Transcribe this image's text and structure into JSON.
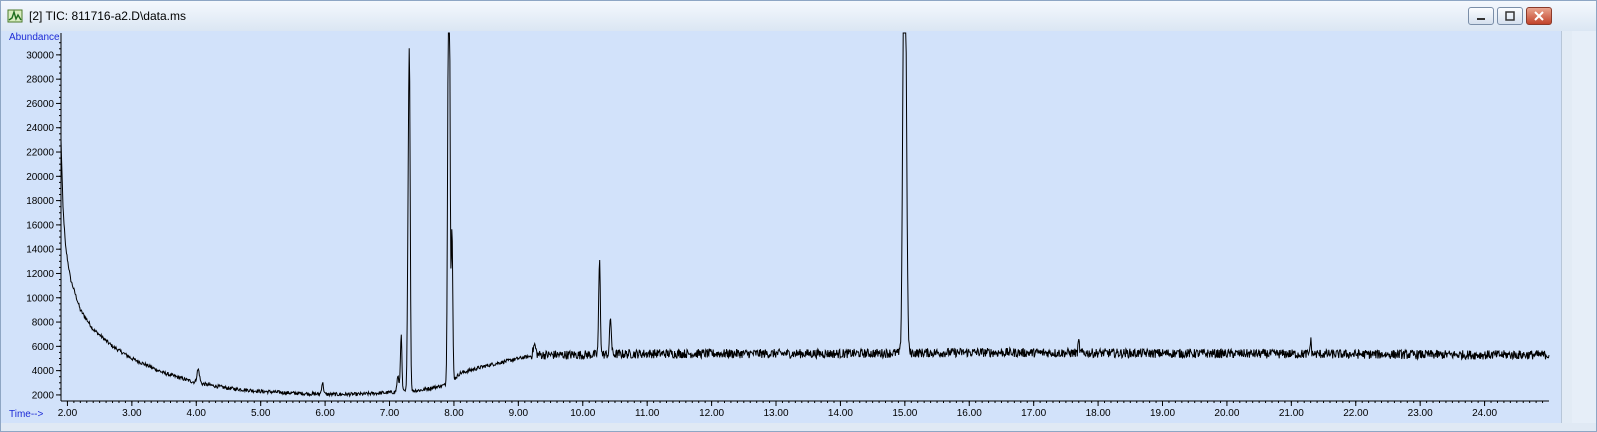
{
  "window": {
    "title": "[2] TIC: 811716-a2.D\\data.ms",
    "icon": "chromatogram-app-icon",
    "buttons": [
      "minimize-icon",
      "restore-icon",
      "close-icon"
    ]
  },
  "colors": {
    "plot_background": "#d2e2fa",
    "axis_label": "#1c2ad6",
    "trace": "#000000",
    "close_button": "#c2432a"
  },
  "chart_data": {
    "type": "line",
    "ylabel": "Abundance",
    "xlabel": "Time-->",
    "xlim": [
      1.9,
      25.0
    ],
    "ylim": [
      1500,
      31800
    ],
    "x_ticks": [
      "2.00",
      "3.00",
      "4.00",
      "5.00",
      "6.00",
      "7.00",
      "8.00",
      "9.00",
      "10.00",
      "11.00",
      "12.00",
      "13.00",
      "14.00",
      "15.00",
      "16.00",
      "17.00",
      "18.00",
      "19.00",
      "20.00",
      "21.00",
      "22.00",
      "23.00",
      "24.00"
    ],
    "y_ticks": [
      "2000",
      "4000",
      "6000",
      "8000",
      "10000",
      "12000",
      "14000",
      "16000",
      "18000",
      "20000",
      "22000",
      "24000",
      "26000",
      "28000",
      "30000"
    ],
    "baseline": [
      [
        1.9,
        23000
      ],
      [
        1.93,
        17500
      ],
      [
        1.97,
        14200
      ],
      [
        2.05,
        11500
      ],
      [
        2.2,
        9000
      ],
      [
        2.4,
        7400
      ],
      [
        2.7,
        6000
      ],
      [
        3.0,
        5000
      ],
      [
        3.5,
        3800
      ],
      [
        4.0,
        3000
      ],
      [
        4.5,
        2550
      ],
      [
        5.0,
        2300
      ],
      [
        5.5,
        2150
      ],
      [
        6.0,
        2050
      ],
      [
        6.5,
        2050
      ],
      [
        7.0,
        2200
      ],
      [
        7.5,
        2400
      ],
      [
        7.85,
        2800
      ],
      [
        8.0,
        3300
      ],
      [
        8.1,
        3800
      ],
      [
        8.5,
        4400
      ],
      [
        9.0,
        5000
      ],
      [
        9.3,
        5300
      ],
      [
        10.0,
        5300
      ],
      [
        11.0,
        5400
      ],
      [
        12.0,
        5400
      ],
      [
        14.0,
        5400
      ],
      [
        16.0,
        5500
      ],
      [
        20.0,
        5400
      ],
      [
        24.0,
        5300
      ],
      [
        25.0,
        5300
      ]
    ],
    "peaks": [
      {
        "x": 4.03,
        "y": 4100,
        "width": 0.02
      },
      {
        "x": 5.96,
        "y": 3000,
        "width": 0.015
      },
      {
        "x": 7.13,
        "y": 3500,
        "width": 0.015
      },
      {
        "x": 7.18,
        "y": 6900,
        "width": 0.012
      },
      {
        "x": 7.29,
        "y": 14800,
        "width": 0.012
      },
      {
        "x": 7.31,
        "y": 26800,
        "width": 0.012
      },
      {
        "x": 7.91,
        "y": 25000,
        "width": 0.012
      },
      {
        "x": 7.93,
        "y": 31800,
        "width": 0.012
      },
      {
        "x": 7.97,
        "y": 15700,
        "width": 0.012
      },
      {
        "x": 9.25,
        "y": 6100,
        "width": 0.02
      },
      {
        "x": 10.26,
        "y": 13000,
        "width": 0.013
      },
      {
        "x": 10.43,
        "y": 8400,
        "width": 0.013
      },
      {
        "x": 14.98,
        "y": 28300,
        "width": 0.018
      },
      {
        "x": 15.01,
        "y": 31600,
        "width": 0.02
      },
      {
        "x": 17.7,
        "y": 6400,
        "width": 0.01
      },
      {
        "x": 21.3,
        "y": 6500,
        "width": 0.01
      }
    ],
    "noise_amplitude": 380
  }
}
